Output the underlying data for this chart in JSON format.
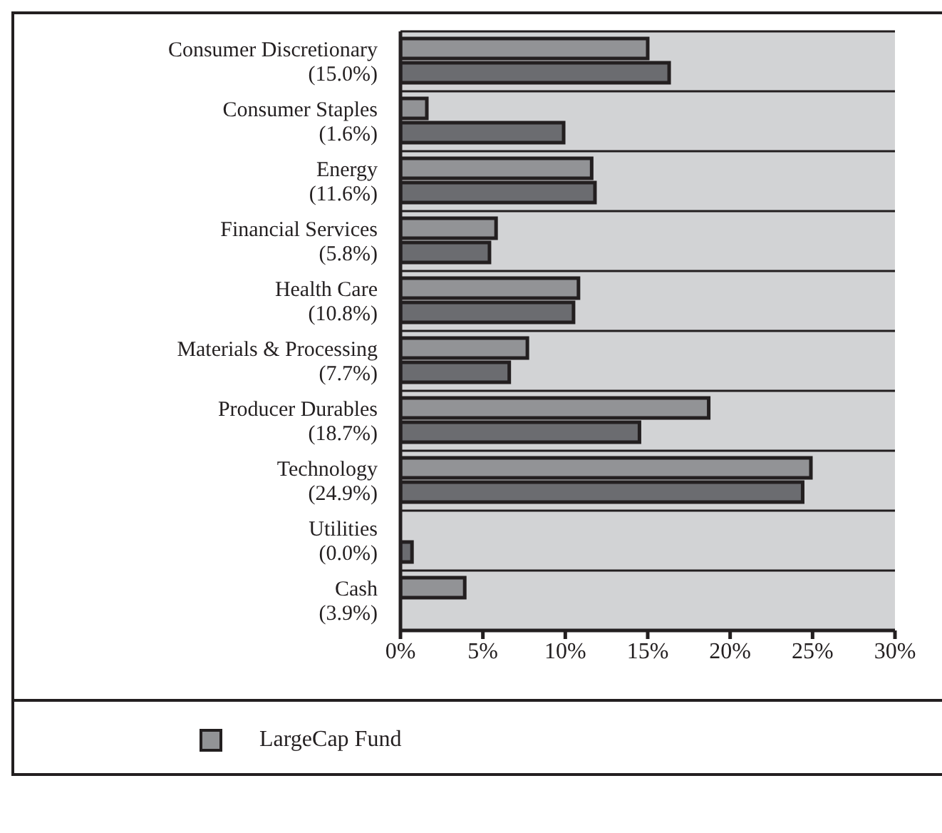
{
  "chart_data": {
    "type": "bar",
    "orientation": "horizontal",
    "categories": [
      "Consumer Discretionary\n(15.0%)",
      "Consumer Staples\n(1.6%)",
      "Energy\n(11.6%)",
      "Financial Services\n(5.8%)",
      "Health Care\n(10.8%)",
      "Materials & Processing\n(7.7%)",
      "Producer Durables\n(18.7%)",
      "Technology\n(24.9%)",
      "Utilities\n(0.0%)",
      "Cash\n(3.9%)"
    ],
    "series": [
      {
        "name": "LargeCap Fund",
        "color": "#929396",
        "values": [
          15.0,
          1.6,
          11.6,
          5.8,
          10.8,
          7.7,
          18.7,
          24.9,
          0.0,
          3.9
        ]
      },
      {
        "color": "#6b6c70",
        "values": [
          16.3,
          9.9,
          11.8,
          5.4,
          10.5,
          6.6,
          14.5,
          24.4,
          0.7,
          0
        ]
      }
    ],
    "xlim": [
      0,
      30
    ],
    "xticks": [
      {
        "value": 0,
        "label": "0%"
      },
      {
        "value": 5,
        "label": "5%"
      },
      {
        "value": 10,
        "label": "10%"
      },
      {
        "value": 15,
        "label": "15%"
      },
      {
        "value": 20,
        "label": "20%"
      },
      {
        "value": 25,
        "label": "25%"
      },
      {
        "value": 30,
        "label": "30%"
      }
    ],
    "grid": "y",
    "legend": "bottom"
  }
}
